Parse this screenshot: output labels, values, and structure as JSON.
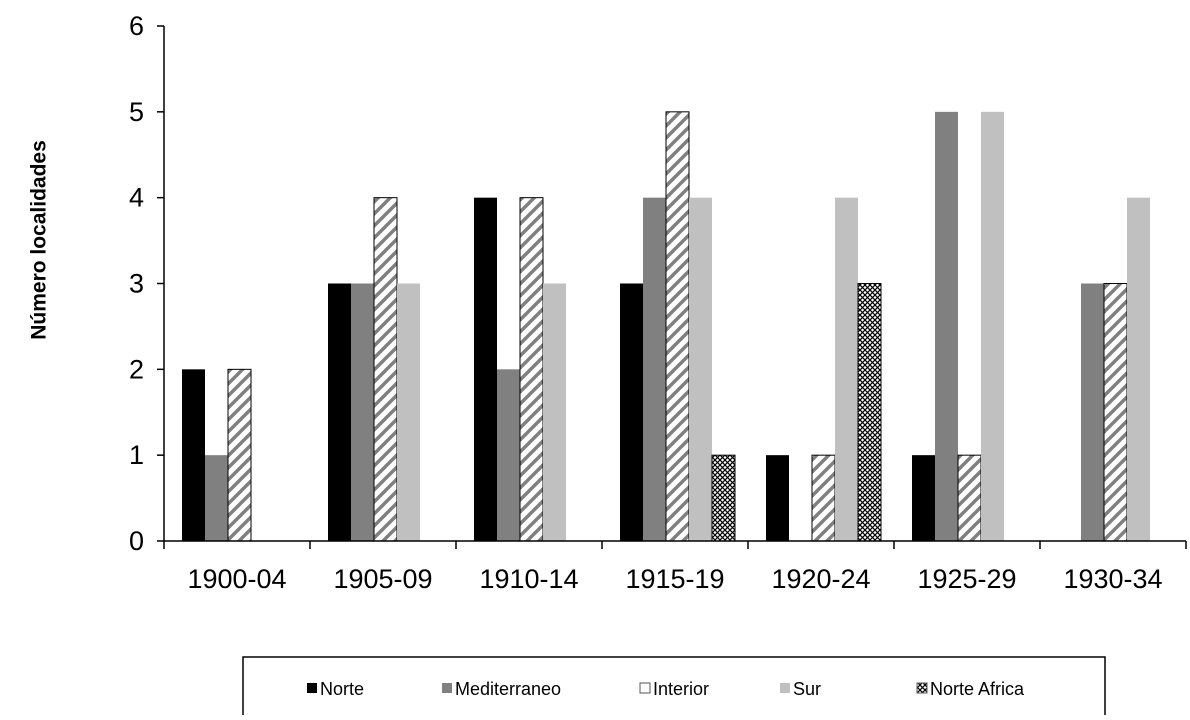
{
  "chart_data": {
    "type": "bar",
    "categories": [
      "1900-04",
      "1905-09",
      "1910-14",
      "1915-19",
      "1920-24",
      "1925-29",
      "1930-34"
    ],
    "series": [
      {
        "name": "Norte",
        "values": [
          2,
          3,
          4,
          3,
          1,
          1,
          0
        ],
        "color": "#000000",
        "pattern": "solid"
      },
      {
        "name": "Mediterraneo",
        "values": [
          1,
          3,
          2,
          4,
          0,
          5,
          3
        ],
        "color": "#808080",
        "pattern": "solid"
      },
      {
        "name": "Interior",
        "values": [
          2,
          4,
          4,
          5,
          1,
          1,
          3
        ],
        "color": "#808080",
        "pattern": "diagonal-stripes"
      },
      {
        "name": "Sur",
        "values": [
          0,
          3,
          3,
          4,
          4,
          5,
          4
        ],
        "color": "#c0c0c0",
        "pattern": "solid"
      },
      {
        "name": "Norte Africa",
        "values": [
          0,
          0,
          0,
          1,
          3,
          0,
          0
        ],
        "color": "#000000",
        "pattern": "crosshatch"
      }
    ],
    "title": "",
    "xlabel": "",
    "ylabel": "Número localidades",
    "ylim": [
      0,
      6
    ],
    "yticks": [
      "0",
      "1",
      "2",
      "3",
      "4",
      "5",
      "6"
    ],
    "grid": false,
    "legend_position": "bottom"
  }
}
